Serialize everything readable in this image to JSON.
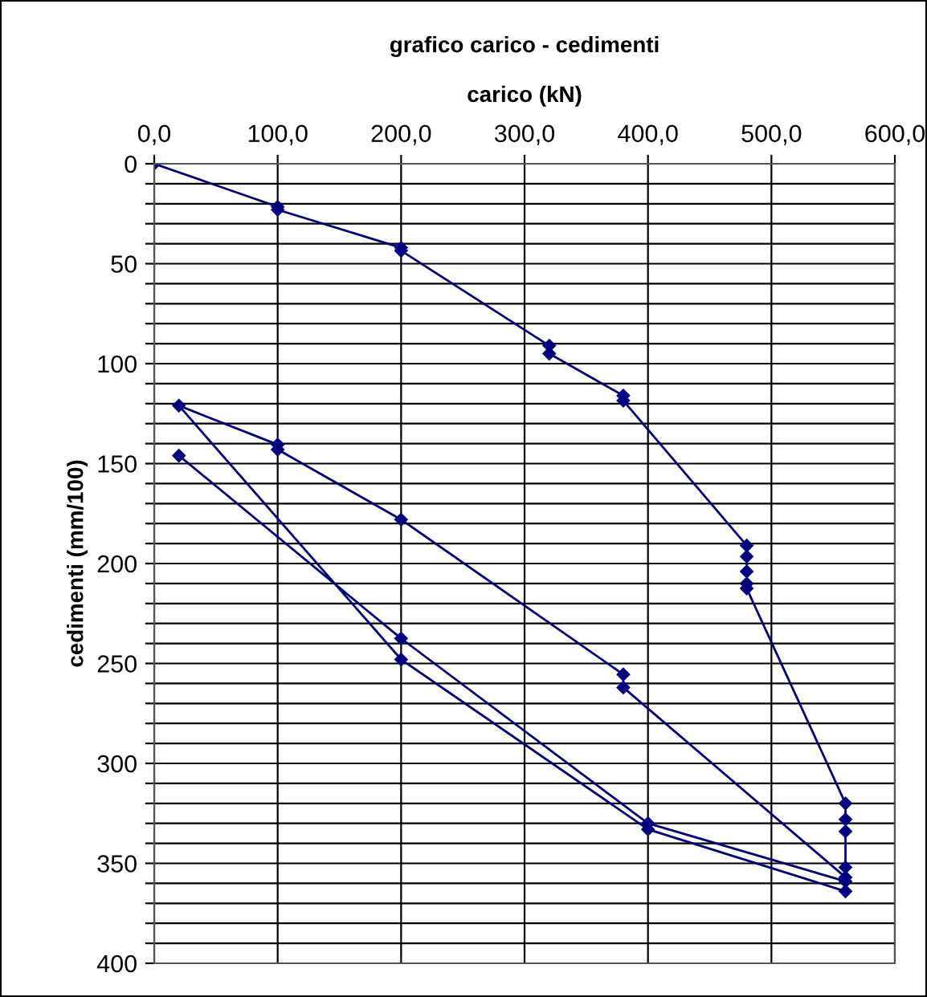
{
  "chart_data": {
    "type": "line",
    "title": "grafico carico - cedimenti",
    "xlabel": "carico (kN)",
    "ylabel": "cedimenti (mm/100)",
    "series": [
      {
        "color": "#000080",
        "x": [
          0,
          100,
          100,
          200,
          200,
          320,
          320,
          380,
          380,
          480,
          480,
          480,
          480,
          480,
          560,
          560,
          560,
          560,
          560,
          380,
          380,
          200,
          100,
          100,
          20,
          200,
          400,
          560,
          560,
          400,
          200,
          20
        ],
        "values": [
          0,
          21.5,
          23,
          42,
          43.5,
          91,
          95,
          116,
          118.5,
          191,
          196.5,
          204,
          210,
          212.5,
          320,
          328,
          334,
          352,
          357,
          262,
          255.5,
          178,
          143,
          140.5,
          121,
          248,
          333,
          364,
          359,
          330,
          237.5,
          146
        ]
      }
    ],
    "xlim": [
      0,
      600
    ],
    "xticks": [
      {
        "value": 0,
        "label": "0,0"
      },
      {
        "value": 100,
        "label": "100,0"
      },
      {
        "value": 200,
        "label": "200,0"
      },
      {
        "value": 300,
        "label": "300,0"
      },
      {
        "value": 400,
        "label": "400,0"
      },
      {
        "value": 500,
        "label": "500,0"
      },
      {
        "value": 600,
        "label": "600,0"
      }
    ],
    "ylim": [
      400,
      0
    ],
    "yticks": [
      0,
      {
        "value": 10,
        "label": null
      },
      {
        "value": 20,
        "label": null
      },
      {
        "value": 30,
        "label": null
      },
      {
        "value": 40,
        "label": null
      },
      50,
      {
        "value": 60,
        "label": null
      },
      {
        "value": 70,
        "label": null
      },
      {
        "value": 80,
        "label": null
      },
      {
        "value": 90,
        "label": null
      },
      100,
      {
        "value": 110,
        "label": null
      },
      {
        "value": 120,
        "label": null
      },
      {
        "value": 130,
        "label": null
      },
      {
        "value": 140,
        "label": null
      },
      150,
      {
        "value": 160,
        "label": null
      },
      {
        "value": 170,
        "label": null
      },
      {
        "value": 180,
        "label": null
      },
      {
        "value": 190,
        "label": null
      },
      200,
      {
        "value": 210,
        "label": null
      },
      {
        "value": 220,
        "label": null
      },
      {
        "value": 230,
        "label": null
      },
      {
        "value": 240,
        "label": null
      },
      250,
      {
        "value": 260,
        "label": null
      },
      {
        "value": 270,
        "label": null
      },
      {
        "value": 280,
        "label": null
      },
      {
        "value": 290,
        "label": null
      },
      300,
      {
        "value": 310,
        "label": null
      },
      {
        "value": 320,
        "label": null
      },
      {
        "value": 330,
        "label": null
      },
      {
        "value": 340,
        "label": null
      },
      350,
      {
        "value": 360,
        "label": null
      },
      {
        "value": 370,
        "label": null
      },
      {
        "value": 380,
        "label": null
      },
      {
        "value": 390,
        "label": null
      },
      400
    ],
    "grid": true,
    "marker": "diamond",
    "line_style": "solid",
    "legend": false
  }
}
